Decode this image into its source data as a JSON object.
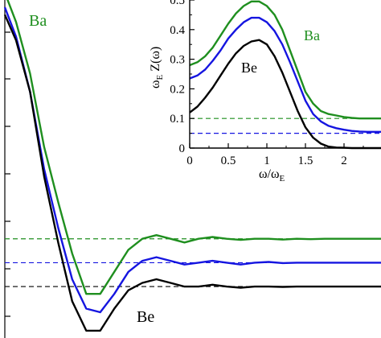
{
  "chart_data": [
    {
      "type": "line",
      "title": "",
      "xlabel": "",
      "ylabel": "",
      "grid": false,
      "legend": "none",
      "xlim": [
        0.22,
        2.9
      ],
      "ylim": [
        -0.42,
        0.5
      ],
      "series": [
        {
          "name": "Ba",
          "color": "#1f8f1f",
          "x": [
            0.22,
            0.3,
            0.4,
            0.5,
            0.6,
            0.7,
            0.8,
            0.9,
            1.0,
            1.1,
            1.2,
            1.3,
            1.4,
            1.5,
            1.6,
            1.7,
            1.8,
            1.9,
            2.0,
            2.1,
            2.2,
            2.3,
            2.4,
            2.5,
            2.6,
            2.7,
            2.8,
            2.9
          ],
          "y": [
            0.52,
            0.44,
            0.3,
            0.1,
            -0.05,
            -0.19,
            -0.3,
            -0.3,
            -0.24,
            -0.18,
            -0.15,
            -0.14,
            -0.15,
            -0.16,
            -0.15,
            -0.145,
            -0.15,
            -0.153,
            -0.15,
            -0.15,
            -0.152,
            -0.15,
            -0.151,
            -0.15,
            -0.15,
            -0.15,
            -0.15,
            -0.15
          ]
        },
        {
          "name": "",
          "color": "#1515e0",
          "x": [
            0.22,
            0.3,
            0.4,
            0.5,
            0.6,
            0.7,
            0.8,
            0.9,
            1.0,
            1.1,
            1.2,
            1.3,
            1.4,
            1.5,
            1.6,
            1.7,
            1.8,
            1.9,
            2.0,
            2.1,
            2.2,
            2.3,
            2.4,
            2.5,
            2.6,
            2.7,
            2.8,
            2.9
          ],
          "y": [
            0.48,
            0.4,
            0.25,
            0.04,
            -0.12,
            -0.26,
            -0.34,
            -0.35,
            -0.3,
            -0.24,
            -0.21,
            -0.2,
            -0.21,
            -0.22,
            -0.215,
            -0.21,
            -0.215,
            -0.22,
            -0.215,
            -0.213,
            -0.216,
            -0.215,
            -0.215,
            -0.215,
            -0.215,
            -0.215,
            -0.215,
            -0.215
          ]
        },
        {
          "name": "Be",
          "color": "#000000",
          "x": [
            0.22,
            0.3,
            0.4,
            0.5,
            0.6,
            0.7,
            0.8,
            0.9,
            1.0,
            1.1,
            1.2,
            1.3,
            1.4,
            1.5,
            1.6,
            1.7,
            1.8,
            1.9,
            2.0,
            2.1,
            2.2,
            2.3,
            2.4,
            2.5,
            2.6,
            2.7,
            2.8,
            2.9
          ],
          "y": [
            0.46,
            0.39,
            0.25,
            0.02,
            -0.16,
            -0.32,
            -0.4,
            -0.4,
            -0.34,
            -0.29,
            -0.27,
            -0.26,
            -0.27,
            -0.28,
            -0.28,
            -0.275,
            -0.28,
            -0.283,
            -0.28,
            -0.28,
            -0.281,
            -0.28,
            -0.28,
            -0.28,
            -0.28,
            -0.28,
            -0.28,
            -0.28
          ]
        }
      ],
      "reference_lines": [
        {
          "y": -0.15,
          "color": "#1f8f1f",
          "style": "dashed"
        },
        {
          "y": -0.215,
          "color": "#1515e0",
          "style": "dashed"
        },
        {
          "y": -0.28,
          "color": "#000000",
          "style": "dashed"
        }
      ],
      "annotations": [
        "Ba",
        "Be"
      ]
    },
    {
      "type": "line",
      "title": "",
      "xlabel": "ω/ω_E",
      "ylabel": "ω_E Z(ω)",
      "grid": false,
      "legend": "none",
      "xlim": [
        0,
        2.5
      ],
      "ylim": [
        0,
        0.5
      ],
      "x_ticks": [
        "0",
        "0.5",
        "1",
        "1.5",
        "2"
      ],
      "y_ticks": [
        "0",
        "0.1",
        "0.2",
        "0.3",
        "0.4",
        "0.5"
      ],
      "series": [
        {
          "name": "Ba",
          "color": "#1f8f1f",
          "x": [
            0,
            0.1,
            0.2,
            0.3,
            0.4,
            0.5,
            0.6,
            0.7,
            0.8,
            0.9,
            1.0,
            1.1,
            1.2,
            1.3,
            1.4,
            1.5,
            1.6,
            1.7,
            1.8,
            1.9,
            2.0,
            2.1,
            2.2,
            2.3,
            2.4,
            2.5
          ],
          "y": [
            0.28,
            0.29,
            0.31,
            0.34,
            0.38,
            0.42,
            0.455,
            0.48,
            0.495,
            0.495,
            0.48,
            0.45,
            0.4,
            0.33,
            0.26,
            0.19,
            0.15,
            0.125,
            0.115,
            0.11,
            0.105,
            0.102,
            0.1,
            0.1,
            0.1,
            0.1
          ]
        },
        {
          "name": "",
          "color": "#1515e0",
          "x": [
            0,
            0.1,
            0.2,
            0.3,
            0.4,
            0.5,
            0.6,
            0.7,
            0.8,
            0.9,
            1.0,
            1.1,
            1.2,
            1.3,
            1.4,
            1.5,
            1.6,
            1.7,
            1.8,
            1.9,
            2.0,
            2.1,
            2.2,
            2.3,
            2.4,
            2.5
          ],
          "y": [
            0.235,
            0.245,
            0.265,
            0.295,
            0.33,
            0.37,
            0.4,
            0.425,
            0.44,
            0.44,
            0.425,
            0.395,
            0.35,
            0.29,
            0.225,
            0.16,
            0.115,
            0.09,
            0.075,
            0.067,
            0.062,
            0.058,
            0.056,
            0.055,
            0.055,
            0.055
          ]
        },
        {
          "name": "Be",
          "color": "#000000",
          "x": [
            0,
            0.1,
            0.2,
            0.3,
            0.4,
            0.5,
            0.6,
            0.7,
            0.8,
            0.9,
            1.0,
            1.1,
            1.2,
            1.3,
            1.4,
            1.5,
            1.6,
            1.7,
            1.8,
            1.9,
            2.0,
            2.1,
            2.2,
            2.3,
            2.4,
            2.5
          ],
          "y": [
            0.12,
            0.14,
            0.17,
            0.205,
            0.245,
            0.285,
            0.32,
            0.345,
            0.36,
            0.365,
            0.35,
            0.31,
            0.255,
            0.19,
            0.125,
            0.07,
            0.035,
            0.015,
            0.005,
            0.002,
            0.001,
            0.0,
            0.0,
            0.0,
            0.0,
            0.0
          ]
        }
      ],
      "reference_lines": [
        {
          "y": 0.1,
          "color": "#1f8f1f",
          "style": "dashed"
        },
        {
          "y": 0.05,
          "color": "#1515e0",
          "style": "dashed"
        }
      ],
      "annotations": [
        "Ba",
        "Be"
      ]
    }
  ],
  "colors": {
    "ba": "#1f8f1f",
    "mid": "#1515e0",
    "be": "#000000",
    "axis": "#000000"
  }
}
